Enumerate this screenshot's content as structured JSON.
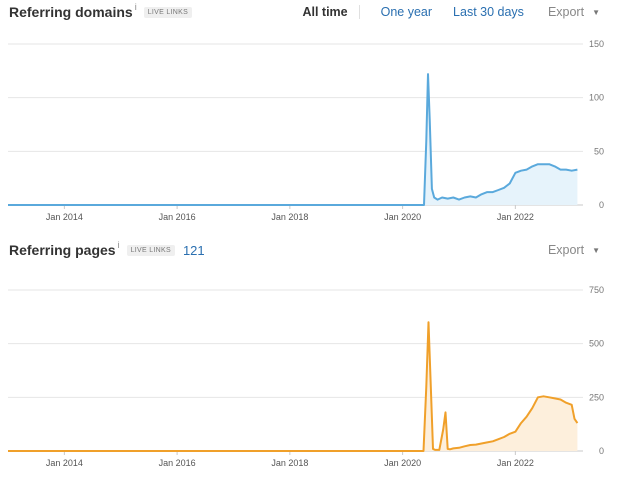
{
  "referring_domains": {
    "title": "Referring domains",
    "info": "i",
    "badge": "LIVE LINKS",
    "ranges": [
      "All time",
      "One year",
      "Last 30 days"
    ],
    "export_label": "Export",
    "caret": "▼",
    "caret_icon": "caret-down-icon",
    "color": "#5aa9dc",
    "fill": "#e6f3fb"
  },
  "referring_pages": {
    "title": "Referring pages",
    "info": "i",
    "badge": "LIVE LINKS",
    "count": "121",
    "export_label": "Export",
    "caret": "▼",
    "caret_icon": "caret-down-icon",
    "color": "#f0a02a",
    "fill": "#fdefdc"
  },
  "chart_data": [
    {
      "type": "area",
      "ylim": [
        0,
        150
      ],
      "yticks": [
        "0",
        "50",
        "100",
        "150"
      ],
      "xlim": [
        2013.0,
        2023.2
      ],
      "xticks": [
        "Jan 2014",
        "Jan 2016",
        "Jan 2018",
        "Jan 2020",
        "Jan 2022"
      ],
      "xtick_values": [
        2014,
        2016,
        2018,
        2020,
        2022
      ],
      "x": [
        2013.0,
        2020.38,
        2020.42,
        2020.45,
        2020.48,
        2020.52,
        2020.56,
        2020.62,
        2020.7,
        2020.8,
        2020.9,
        2021.0,
        2021.1,
        2021.2,
        2021.3,
        2021.4,
        2021.5,
        2021.6,
        2021.7,
        2021.8,
        2021.9,
        2022.0,
        2022.1,
        2022.2,
        2022.3,
        2022.4,
        2022.5,
        2022.6,
        2022.7,
        2022.8,
        2022.9,
        2023.0,
        2023.1
      ],
      "values": [
        0,
        0,
        60,
        122,
        80,
        15,
        7,
        5,
        7,
        6,
        7,
        5,
        7,
        8,
        7,
        10,
        12,
        12,
        14,
        16,
        20,
        30,
        32,
        33,
        36,
        38,
        38,
        38,
        36,
        33,
        33,
        32,
        33
      ]
    },
    {
      "type": "area",
      "ylim": [
        0,
        750
      ],
      "yticks": [
        "0",
        "250",
        "500",
        "750"
      ],
      "xlim": [
        2013.0,
        2023.2
      ],
      "xticks": [
        "Jan 2014",
        "Jan 2016",
        "Jan 2018",
        "Jan 2020",
        "Jan 2022"
      ],
      "xtick_values": [
        2014,
        2016,
        2018,
        2020,
        2022
      ],
      "x": [
        2013.0,
        2020.37,
        2020.42,
        2020.46,
        2020.5,
        2020.54,
        2020.58,
        2020.65,
        2020.72,
        2020.76,
        2020.8,
        2020.84,
        2020.9,
        2021.0,
        2021.1,
        2021.2,
        2021.3,
        2021.4,
        2021.5,
        2021.6,
        2021.7,
        2021.8,
        2021.9,
        2022.0,
        2022.1,
        2022.2,
        2022.3,
        2022.4,
        2022.5,
        2022.6,
        2022.7,
        2022.8,
        2022.9,
        2023.0,
        2023.05,
        2023.1
      ],
      "values": [
        0,
        0,
        300,
        600,
        300,
        10,
        5,
        5,
        100,
        180,
        10,
        8,
        12,
        15,
        22,
        28,
        30,
        35,
        40,
        45,
        55,
        65,
        80,
        90,
        130,
        160,
        200,
        250,
        255,
        250,
        245,
        240,
        225,
        215,
        150,
        130
      ]
    }
  ]
}
